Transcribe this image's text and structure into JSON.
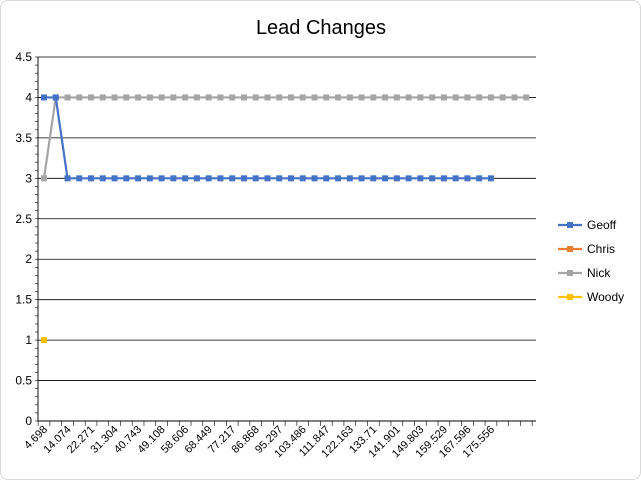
{
  "chart_data": {
    "type": "line",
    "title": "Lead Changes",
    "xlabel": "",
    "ylabel": "",
    "ylim": [
      0,
      4.5
    ],
    "yticks": [
      "0",
      "0.5",
      "1",
      "1.5",
      "2",
      "2.5",
      "3",
      "3.5",
      "4",
      "4.5"
    ],
    "grid": true,
    "legend_position": "right",
    "point_count": 42,
    "x_tick_labels": [
      {
        "index": 0,
        "label": "4.698"
      },
      {
        "index": 2,
        "label": "14.074"
      },
      {
        "index": 4,
        "label": "22.271"
      },
      {
        "index": 6,
        "label": "31.304"
      },
      {
        "index": 8,
        "label": "40.743"
      },
      {
        "index": 10,
        "label": "49.108"
      },
      {
        "index": 12,
        "label": "58.606"
      },
      {
        "index": 14,
        "label": "68.449"
      },
      {
        "index": 16,
        "label": "77.217"
      },
      {
        "index": 18,
        "label": "86.868"
      },
      {
        "index": 20,
        "label": "95.297"
      },
      {
        "index": 22,
        "label": "103.486"
      },
      {
        "index": 24,
        "label": "111.847"
      },
      {
        "index": 26,
        "label": "122.163"
      },
      {
        "index": 28,
        "label": "133.71"
      },
      {
        "index": 30,
        "label": "141.901"
      },
      {
        "index": 32,
        "label": "149.803"
      },
      {
        "index": 34,
        "label": "159.529"
      },
      {
        "index": 36,
        "label": "167.596"
      },
      {
        "index": 38,
        "label": "175.556"
      }
    ],
    "series": [
      {
        "name": "Geoff",
        "color": "#4472c4",
        "values": [
          4,
          4,
          3,
          3,
          3,
          3,
          3,
          3,
          3,
          3,
          3,
          3,
          3,
          3,
          3,
          3,
          3,
          3,
          3,
          3,
          3,
          3,
          3,
          3,
          3,
          3,
          3,
          3,
          3,
          3,
          3,
          3,
          3,
          3,
          3,
          3,
          3,
          3,
          3,
          null,
          null,
          null
        ]
      },
      {
        "name": "Chris",
        "color": "#ed7d31",
        "values": [
          null,
          null,
          null,
          null,
          null,
          null,
          null,
          null,
          null,
          null,
          null,
          null,
          null,
          null,
          null,
          null,
          null,
          null,
          null,
          null,
          null,
          null,
          null,
          null,
          null,
          null,
          null,
          null,
          null,
          null,
          null,
          null,
          null,
          null,
          null,
          null,
          null,
          null,
          null,
          null,
          null,
          null
        ]
      },
      {
        "name": "Nick",
        "color": "#a5a5a5",
        "values": [
          3,
          4,
          4,
          4,
          4,
          4,
          4,
          4,
          4,
          4,
          4,
          4,
          4,
          4,
          4,
          4,
          4,
          4,
          4,
          4,
          4,
          4,
          4,
          4,
          4,
          4,
          4,
          4,
          4,
          4,
          4,
          4,
          4,
          4,
          4,
          4,
          4,
          4,
          4,
          4,
          4,
          4
        ]
      },
      {
        "name": "Woody",
        "color": "#ffc000",
        "values": [
          1,
          null,
          null,
          null,
          null,
          null,
          null,
          null,
          null,
          null,
          null,
          null,
          null,
          null,
          null,
          null,
          null,
          null,
          null,
          null,
          null,
          null,
          null,
          null,
          null,
          null,
          null,
          null,
          null,
          null,
          null,
          null,
          null,
          null,
          null,
          null,
          null,
          null,
          null,
          null,
          null,
          null
        ]
      }
    ]
  }
}
